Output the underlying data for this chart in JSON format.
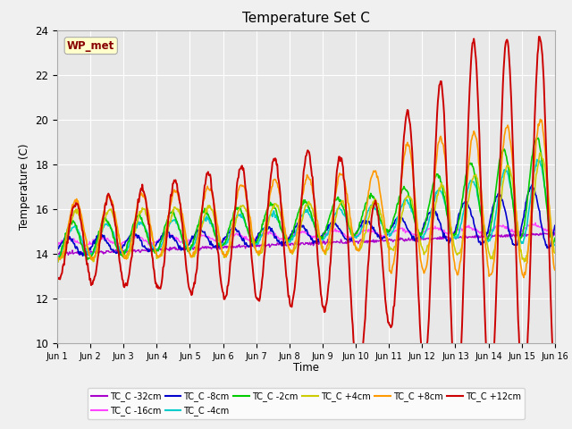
{
  "title": "Temperature Set C",
  "xlabel": "Time",
  "ylabel": "Temperature (C)",
  "ylim": [
    10,
    24
  ],
  "xlim": [
    0,
    15
  ],
  "yticks": [
    10,
    12,
    14,
    16,
    18,
    20,
    22,
    24
  ],
  "xtick_labels": [
    "Jun 1",
    "Jun 2",
    "Jun 3",
    "Jun 4",
    "Jun 5",
    "Jun 6",
    "Jun 7",
    "Jun 8",
    "Jun 9",
    "Jun 10",
    "Jun 11",
    "Jun 12",
    "Jun 13",
    "Jun 14",
    "Jun 15",
    "Jun 16"
  ],
  "wp_met_label": "WP_met",
  "wp_met_bg": "#ffffcc",
  "wp_met_text": "#880000",
  "fig_bg": "#f0f0f0",
  "axes_bg": "#e8e8e8",
  "series": [
    {
      "label": "TC_C -32cm",
      "color": "#aa00cc",
      "lw": 1.0
    },
    {
      "label": "TC_C -16cm",
      "color": "#ff44ff",
      "lw": 1.0
    },
    {
      "label": "TC_C -8cm",
      "color": "#0000cc",
      "lw": 1.2
    },
    {
      "label": "TC_C -4cm",
      "color": "#00cccc",
      "lw": 1.2
    },
    {
      "label": "TC_C -2cm",
      "color": "#00cc00",
      "lw": 1.2
    },
    {
      "label": "TC_C +4cm",
      "color": "#cccc00",
      "lw": 1.2
    },
    {
      "label": "TC_C +8cm",
      "color": "#ff9900",
      "lw": 1.2
    },
    {
      "label": "TC_C +12cm",
      "color": "#cc0000",
      "lw": 1.4
    }
  ],
  "legend_ncol": 6,
  "legend_row2": [
    "TC_C +8cm",
    "TC_C +12cm"
  ]
}
